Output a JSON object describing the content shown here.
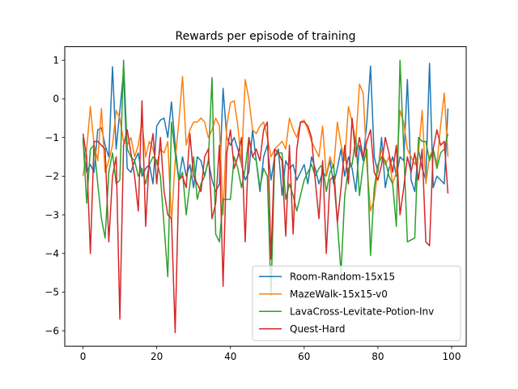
{
  "chart_data": {
    "type": "line",
    "title": "Rewards per episode of training",
    "xlabel": "",
    "ylabel": "",
    "xlim": [
      -4.95,
      103.95
    ],
    "ylim": [
      -6.4,
      1.35
    ],
    "xticks": [
      0,
      20,
      40,
      60,
      80,
      100
    ],
    "yticks": [
      1,
      0,
      -1,
      -2,
      -3,
      -4,
      -5,
      -6
    ],
    "grid": false,
    "legend_position": "lower right",
    "x": [
      0,
      1,
      2,
      3,
      4,
      5,
      6,
      7,
      8,
      9,
      10,
      11,
      12,
      13,
      14,
      15,
      16,
      17,
      18,
      19,
      20,
      21,
      22,
      23,
      24,
      25,
      26,
      27,
      28,
      29,
      30,
      31,
      32,
      33,
      34,
      35,
      36,
      37,
      38,
      39,
      40,
      41,
      42,
      43,
      44,
      45,
      46,
      47,
      48,
      49,
      50,
      51,
      52,
      53,
      54,
      55,
      56,
      57,
      58,
      59,
      60,
      61,
      62,
      63,
      64,
      65,
      66,
      67,
      68,
      69,
      70,
      71,
      72,
      73,
      74,
      75,
      76,
      77,
      78,
      79,
      80,
      81,
      82,
      83,
      84,
      85,
      86,
      87,
      88,
      89,
      90,
      91,
      92,
      93,
      94,
      95,
      96,
      97,
      98,
      99
    ],
    "series": [
      {
        "name": "Room-Random-15x15",
        "color": "#1f77b4",
        "values": [
          -1.1,
          -1.9,
          -1.7,
          -1.9,
          -0.8,
          -0.75,
          -1.2,
          -1.5,
          0.83,
          -1.3,
          -0.3,
          0.7,
          -1.8,
          -1.9,
          -1.6,
          -1.4,
          -2.0,
          -1.8,
          -1.7,
          -2.2,
          -0.7,
          -0.55,
          -0.5,
          -1.0,
          -0.08,
          -1.2,
          -2.1,
          -1.5,
          -2.0,
          -1.7,
          -2.3,
          -1.5,
          -1.6,
          -2.0,
          -1.6,
          -2.1,
          -2.4,
          -2.2,
          0.27,
          -1.0,
          -1.2,
          -1.0,
          -1.3,
          -1.7,
          -2.1,
          -1.9,
          -0.8,
          -1.6,
          -2.4,
          -1.5,
          -1.2,
          -2.1,
          -1.5,
          -1.3,
          -2.5,
          -1.6,
          -1.8,
          -1.7,
          -2.1,
          -1.9,
          -1.7,
          -2.2,
          -1.5,
          -1.8,
          -2.2,
          -1.9,
          -2.0,
          -1.6,
          -2.2,
          -1.8,
          -1.3,
          -2.0,
          -1.5,
          -1.8,
          -2.4,
          -1.2,
          -1.6,
          -0.6,
          0.85,
          -1.5,
          -1.9,
          -1.0,
          -2.3,
          -1.8,
          -1.5,
          -2.0,
          -1.5,
          -1.6,
          0.5,
          -2.1,
          -2.4,
          -1.3,
          -1.8,
          -2.1,
          0.92,
          -2.3,
          -2.0,
          -2.1,
          -2.2,
          -0.25
        ]
      },
      {
        "name": "MazeWalk-15x15-v0",
        "color": "#ff7f0e",
        "values": [
          -2.0,
          -1.3,
          -0.2,
          -1.2,
          -1.6,
          -0.25,
          -1.9,
          -1.6,
          -1.2,
          -0.3,
          -0.5,
          -1.1,
          -1.2,
          -1.0,
          -1.5,
          -1.2,
          -0.6,
          -1.5,
          -1.1,
          -1.3,
          -1.7,
          -1.3,
          -1.4,
          -1.1,
          -3.2,
          -1.6,
          -0.6,
          0.58,
          -1.2,
          -0.8,
          -0.6,
          -0.6,
          -0.5,
          -0.6,
          -1.0,
          -0.8,
          -0.5,
          -0.7,
          -3.0,
          -0.7,
          -0.1,
          -0.05,
          -0.7,
          -1.7,
          0.5,
          0.0,
          -0.8,
          -0.9,
          -0.7,
          -0.6,
          -1.0,
          -1.5,
          -1.3,
          -1.2,
          -1.1,
          -1.3,
          -0.5,
          -0.8,
          -1.0,
          -0.6,
          -0.55,
          -0.8,
          -1.1,
          -1.3,
          -1.5,
          -0.7,
          -2.0,
          -1.5,
          -1.8,
          -0.6,
          -1.2,
          -1.6,
          -0.2,
          -0.6,
          -1.1,
          0.38,
          0.15,
          -1.7,
          -2.9,
          -2.6,
          -1.8,
          -1.3,
          -1.7,
          -1.5,
          -2.2,
          -1.9,
          -0.3,
          -0.6,
          -1.3,
          -1.5,
          -1.7,
          -1.4,
          -0.3,
          -2.2,
          -1.5,
          -1.3,
          -1.7,
          -0.7,
          0.15,
          -1.5
        ]
      },
      {
        "name": "LavaCross-Levitate-Potion-Inv",
        "color": "#2ca02c",
        "values": [
          -1.0,
          -2.7,
          -1.3,
          -1.2,
          -2.2,
          -3.1,
          -3.6,
          -1.9,
          -1.4,
          -2.2,
          -2.1,
          1.0,
          -1.3,
          -1.5,
          -1.6,
          -2.0,
          -1.8,
          -2.2,
          -1.7,
          -1.5,
          -1.6,
          -2.0,
          -3.3,
          -4.6,
          -0.6,
          -1.4,
          -2.1,
          -1.9,
          -3.0,
          -2.2,
          -1.5,
          -2.6,
          -2.2,
          -2.0,
          -1.6,
          0.55,
          -3.5,
          -3.7,
          -2.6,
          -2.6,
          -2.6,
          -1.5,
          -1.8,
          -2.3,
          -1.8,
          -1.0,
          -1.5,
          -1.6,
          -2.3,
          -1.8,
          -2.0,
          -5.1,
          -1.5,
          -1.4,
          -1.4,
          -2.6,
          -2.2,
          -2.5,
          -2.9,
          -2.5,
          -2.1,
          -1.9,
          -1.7,
          -2.0,
          -1.8,
          -1.7,
          -2.4,
          -1.9,
          -1.7,
          -3.2,
          -4.5,
          -2.5,
          -1.8,
          -1.7,
          -1.0,
          -2.5,
          -1.7,
          -1.3,
          -4.05,
          -2.3,
          -1.7,
          -1.5,
          -1.6,
          -2.0,
          -2.2,
          -3.3,
          1.0,
          -1.3,
          -3.7,
          -3.65,
          -3.6,
          -1.0,
          -1.1,
          -1.1,
          -1.6,
          -1.3,
          -1.8,
          -1.4,
          -1.3,
          -0.9
        ]
      },
      {
        "name": "Quest-Hard",
        "color": "#d62728",
        "values": [
          -0.9,
          -1.5,
          -4.0,
          -1.1,
          -1.1,
          -1.2,
          -1.3,
          -3.7,
          -2.0,
          -1.5,
          -5.7,
          -1.2,
          -0.8,
          -1.4,
          -2.0,
          -2.9,
          -0.05,
          -3.3,
          -1.5,
          -0.9,
          -2.2,
          -1.0,
          -2.4,
          -3.0,
          -3.1,
          -6.05,
          -2.1,
          -2.0,
          -2.3,
          -0.9,
          -2.0,
          -2.2,
          -2.4,
          -1.5,
          -1.3,
          -3.1,
          -2.7,
          -1.2,
          -4.85,
          -1.4,
          -0.8,
          -1.8,
          -1.5,
          -1.0,
          -3.7,
          -1.0,
          -1.5,
          -1.3,
          -1.6,
          -0.8,
          -0.6,
          -4.15,
          -1.3,
          -1.4,
          -1.6,
          -3.55,
          -1.2,
          -3.5,
          -1.3,
          -0.6,
          -0.6,
          -0.7,
          -1.0,
          -2.1,
          -3.1,
          -1.6,
          -4.0,
          -2.1,
          -2.0,
          -3.2,
          -2.3,
          -1.2,
          -2.2,
          -0.5,
          -1.5,
          -1.0,
          -1.5,
          -1.1,
          -0.8,
          -1.9,
          -2.1,
          -1.7,
          -1.0,
          -1.4,
          -1.9,
          -1.2,
          -3.0,
          -2.3,
          -1.5,
          -1.9,
          -1.4,
          -2.1,
          -1.3,
          -3.7,
          -3.8,
          -1.3,
          -0.8,
          -1.2,
          -1.1,
          -2.45
        ]
      }
    ]
  }
}
